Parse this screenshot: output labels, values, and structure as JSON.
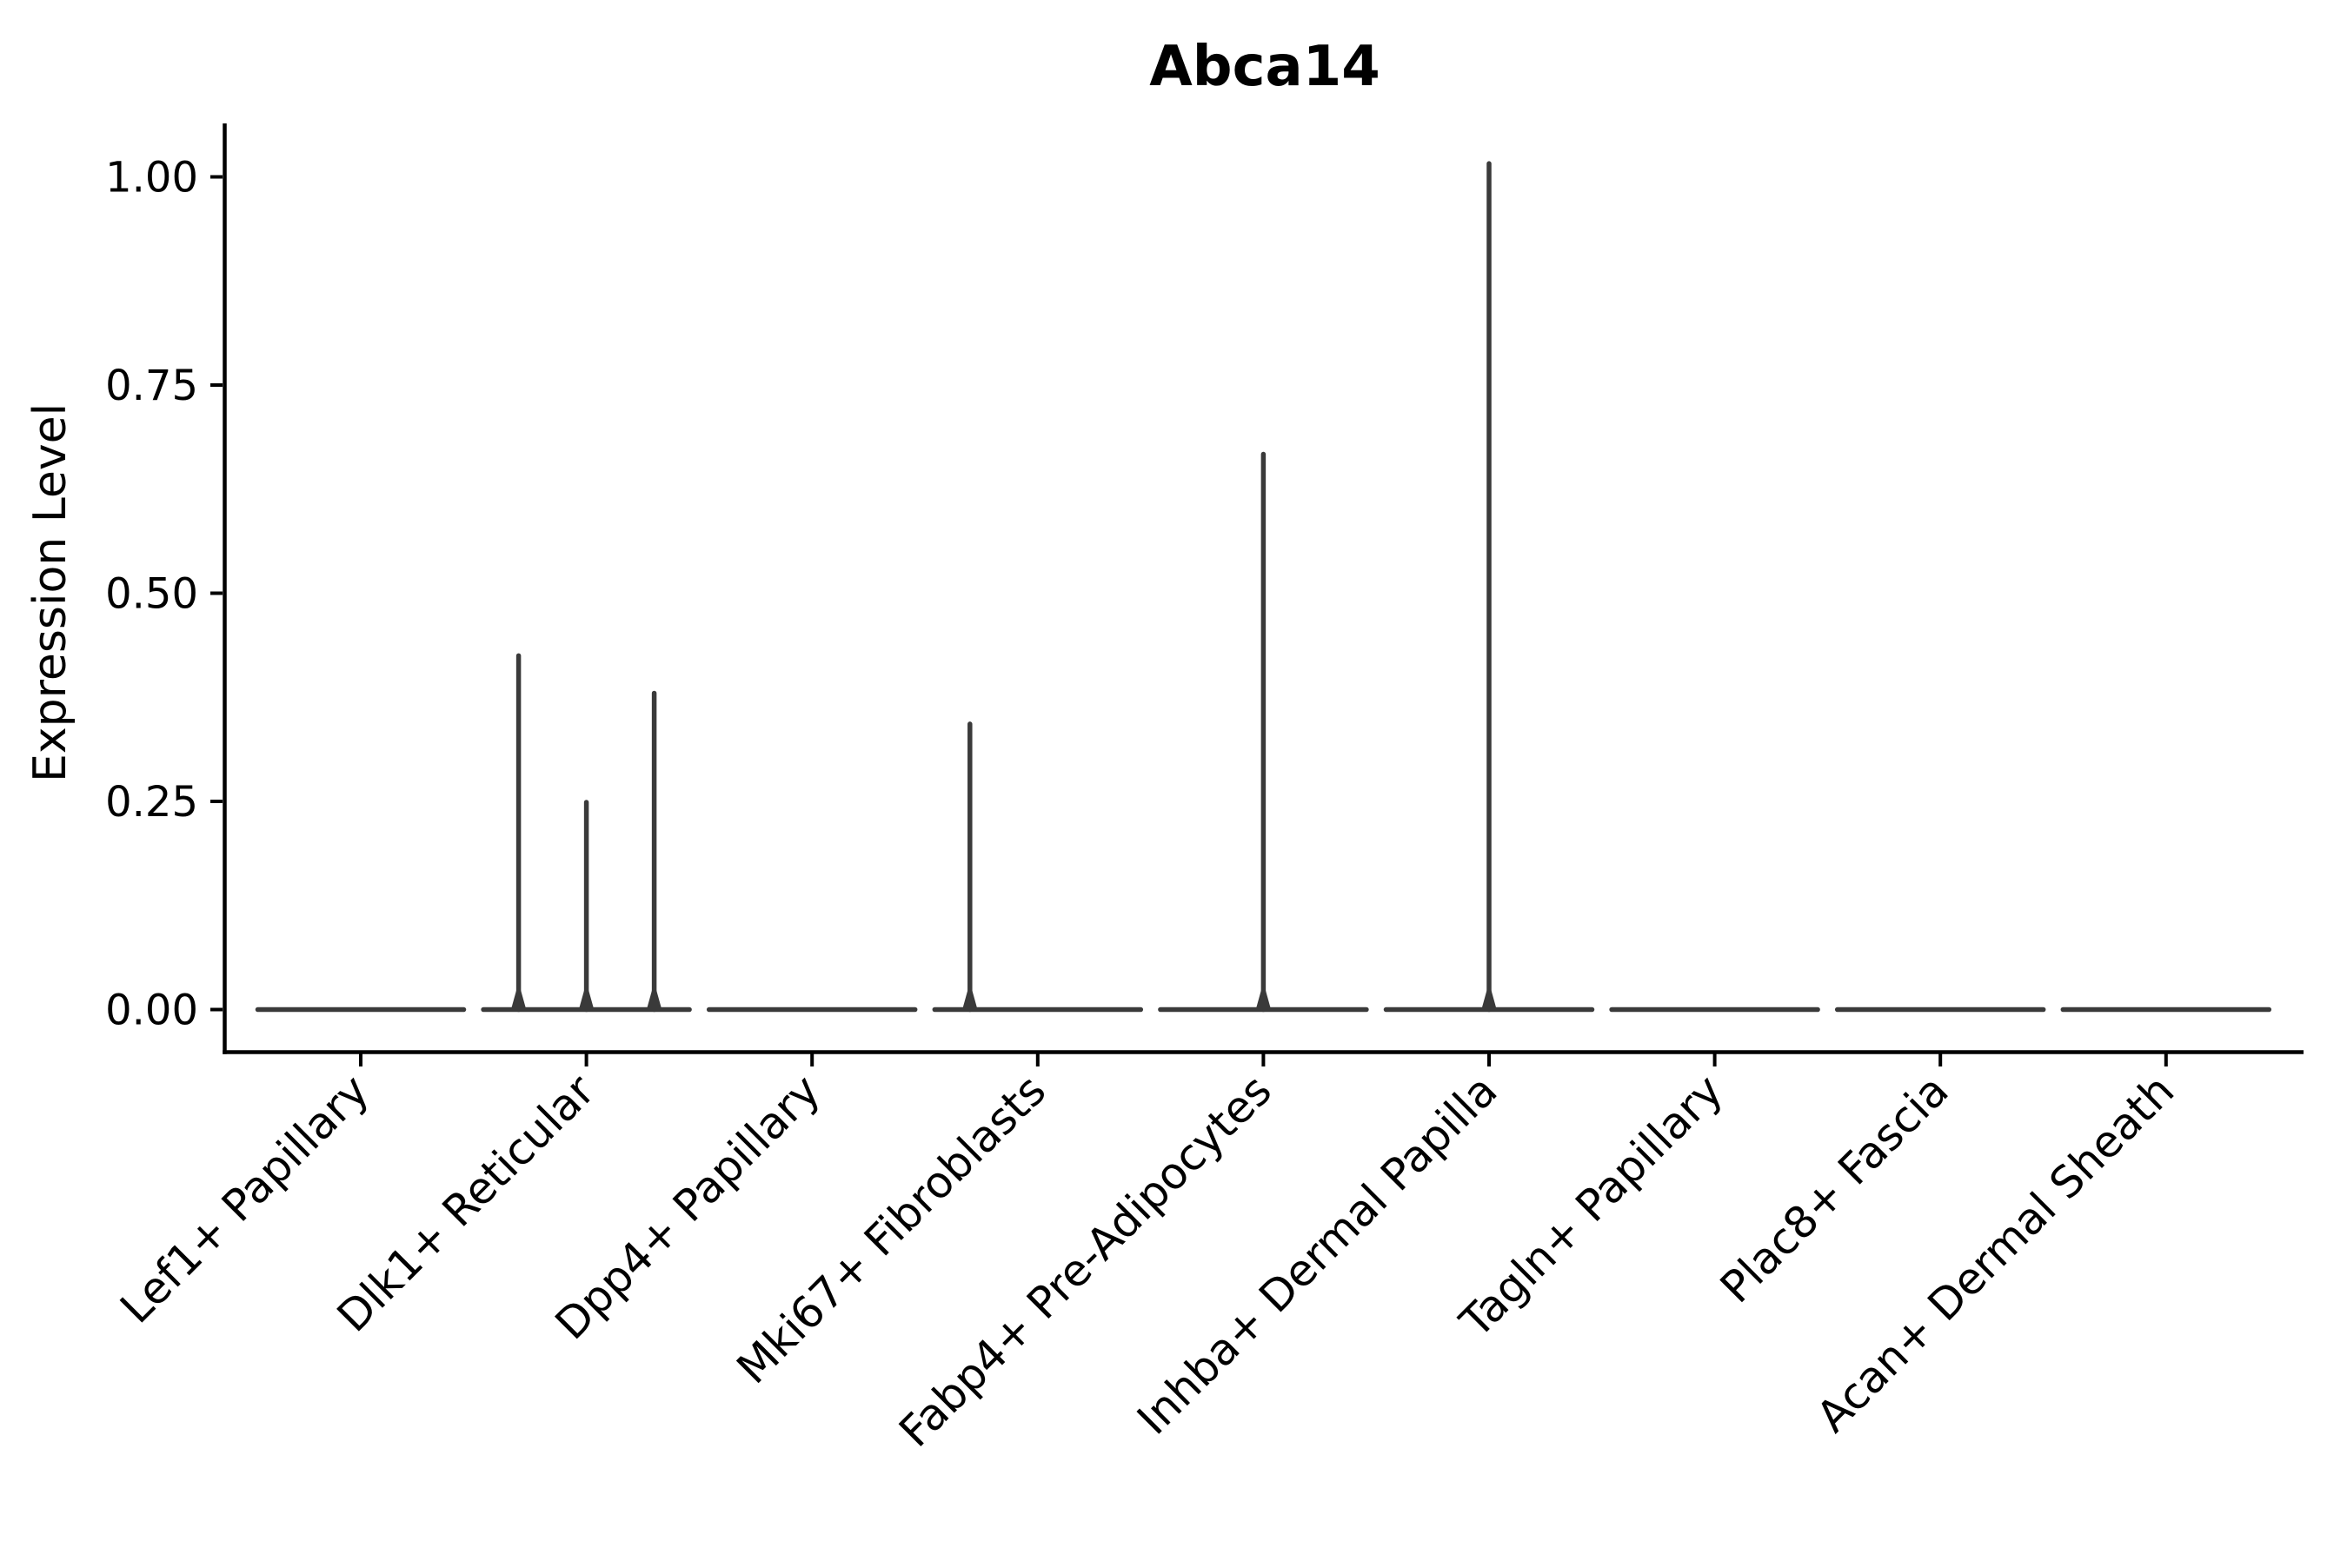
{
  "chart_data": {
    "type": "violin",
    "title": "Abca14",
    "ylabel": "Expression Level",
    "xlabel": "",
    "ylim": [
      -0.05,
      1.06
    ],
    "grid": false,
    "legend": null,
    "yticks": [
      {
        "value": 0.0,
        "label": "0.00"
      },
      {
        "value": 0.25,
        "label": "0.25"
      },
      {
        "value": 0.5,
        "label": "0.50"
      },
      {
        "value": 0.75,
        "label": "0.75"
      },
      {
        "value": 1.0,
        "label": "1.00"
      }
    ],
    "categories": [
      "Lef1+ Papillary",
      "Dlk1+ Reticular",
      "Dpp4+ Papillary",
      "Mki67+ Fibroblasts",
      "Fabp4+ Pre-Adipocytes",
      "Inhba+ Dermal Papilla",
      "Tagln+ Papillary",
      "Plac8+ Fascia",
      "Acan+ Dermal Sheath"
    ],
    "violins": [
      {
        "category": "Lef1+ Papillary",
        "baseline_value": 0,
        "spikes": []
      },
      {
        "category": "Dlk1+ Reticular",
        "baseline_value": 0,
        "spikes": [
          {
            "value": 0.425,
            "dx": -78
          },
          {
            "value": 0.249,
            "dx": 0
          },
          {
            "value": 0.38,
            "dx": 78
          }
        ]
      },
      {
        "category": "Dpp4+ Papillary",
        "baseline_value": 0,
        "spikes": []
      },
      {
        "category": "Mki67+ Fibroblasts",
        "baseline_value": 0,
        "spikes": [
          {
            "value": 0.343,
            "dx": -78
          }
        ]
      },
      {
        "category": "Fabp4+ Pre-Adipocytes",
        "baseline_value": 0,
        "spikes": [
          {
            "value": 0.667,
            "dx": 0
          }
        ]
      },
      {
        "category": "Inhba+ Dermal Papilla",
        "baseline_value": 0,
        "spikes": [
          {
            "value": 1.016,
            "dx": 0
          }
        ]
      },
      {
        "category": "Tagln+ Papillary",
        "baseline_value": 0,
        "spikes": []
      },
      {
        "category": "Plac8+ Fascia",
        "baseline_value": 0,
        "spikes": []
      },
      {
        "category": "Acan+ Dermal Sheath",
        "baseline_value": 0,
        "spikes": []
      }
    ],
    "colors": {
      "violin_stroke": "#3a3a3a",
      "axis": "#000000",
      "text": "#000000",
      "background": "#ffffff"
    }
  }
}
